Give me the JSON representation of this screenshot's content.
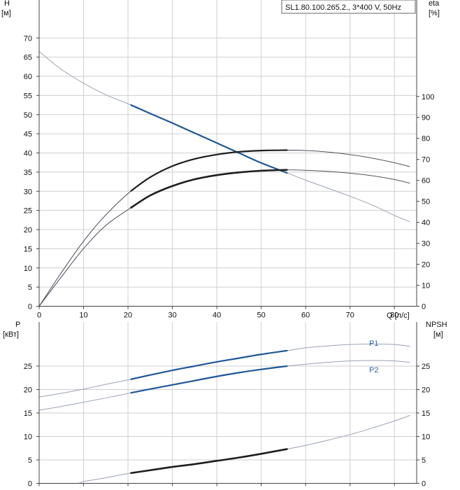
{
  "colors": {
    "grid": "#cfcfcf",
    "axis": "#444444",
    "thin_curve": "#9aa3b5",
    "dark_curve": "#1e1e1e",
    "blue_curve": "#1f5896",
    "legend_blue": "#2e63a8"
  },
  "chart_data": [
    {
      "type": "line",
      "panel": "head",
      "title": "SL1.80.100.265.2., 3*400 V, 50Hz",
      "xlabel": "Q [л/с]",
      "ylabel_left": [
        "H",
        "[м]"
      ],
      "ylabel_right": [
        "eta",
        "[%]"
      ],
      "xlim": [
        0,
        85
      ],
      "ylim_left": [
        0,
        75
      ],
      "ylim_right": [
        0,
        137
      ],
      "xticks": [
        0,
        10,
        20,
        30,
        40,
        50,
        60,
        70,
        80
      ],
      "yticks_left": [
        0,
        5,
        10,
        15,
        20,
        25,
        30,
        35,
        40,
        45,
        50,
        55,
        60,
        65,
        70
      ],
      "yticks_right": [
        0,
        10,
        20,
        30,
        40,
        50,
        60,
        70,
        80,
        90,
        100
      ],
      "grid": true,
      "series": [
        {
          "id": "H",
          "axis": "left",
          "x": [
            0,
            5,
            10,
            15,
            20.7,
            25,
            30,
            35,
            40,
            45,
            50,
            55.8,
            60,
            65,
            70,
            75,
            80,
            83.5
          ],
          "y": [
            66.5,
            61.8,
            58.2,
            55.2,
            52.5,
            50.3,
            47.8,
            45.2,
            42.6,
            40,
            37.4,
            34.8,
            32.9,
            30.8,
            28.7,
            26.4,
            23.7,
            22
          ],
          "operating_range": [
            20.7,
            55.8
          ]
        },
        {
          "id": "eta",
          "axis": "right",
          "x": [
            0,
            5,
            10,
            15,
            20.7,
            25,
            30,
            35,
            40,
            45,
            50,
            55.8,
            60,
            65,
            70,
            75,
            80,
            83.5
          ],
          "y": [
            0,
            16,
            31,
            43.5,
            55,
            61.5,
            66.8,
            70.2,
            72.3,
            73.6,
            74.2,
            74.4,
            74.2,
            73.5,
            72.3,
            70.6,
            68.4,
            66.5
          ],
          "operating_range": [
            20.7,
            55.8
          ]
        },
        {
          "id": "eta2",
          "axis": "right",
          "x": [
            0,
            5,
            10,
            15,
            20.7,
            25,
            30,
            35,
            40,
            45,
            50,
            55.8,
            60,
            65,
            70,
            75,
            80,
            83.5
          ],
          "y": [
            0,
            14,
            27.5,
            38.5,
            47,
            52.8,
            57.3,
            60.5,
            62.5,
            63.8,
            64.6,
            65,
            64.8,
            64.3,
            63.4,
            62.2,
            60.4,
            58.6
          ],
          "operating_range": [
            20.7,
            55.8
          ]
        }
      ]
    },
    {
      "type": "line",
      "panel": "power",
      "ylabel_left": [
        "P",
        "[кВт]"
      ],
      "ylabel_right": [
        "NPSH",
        "[м]"
      ],
      "xlim": [
        0,
        85
      ],
      "ylim_left": [
        0,
        30
      ],
      "ylim_right": [
        0,
        30
      ],
      "yticks_left": [
        0,
        5,
        10,
        15,
        20,
        25
      ],
      "yticks_right": [
        0,
        5,
        10,
        15,
        20,
        25
      ],
      "grid": true,
      "series": [
        {
          "name": "P1",
          "axis": "left",
          "x": [
            0,
            5,
            10,
            15,
            20.7,
            25,
            30,
            35,
            40,
            45,
            50,
            55.8,
            60,
            65,
            70,
            75,
            80,
            83.5
          ],
          "y": [
            18.4,
            19.2,
            20.1,
            21.1,
            22.2,
            23.1,
            24.1,
            25,
            25.9,
            26.7,
            27.5,
            28.3,
            28.9,
            29.3,
            29.6,
            29.7,
            29.6,
            29.2
          ],
          "operating_range": [
            20.7,
            55.8
          ]
        },
        {
          "name": "P2",
          "axis": "left",
          "x": [
            0,
            5,
            10,
            15,
            20.7,
            25,
            30,
            35,
            40,
            45,
            50,
            55.8,
            60,
            65,
            70,
            75,
            80,
            83.5
          ],
          "y": [
            15.6,
            16.4,
            17.3,
            18.2,
            19.3,
            20.1,
            21,
            21.9,
            22.8,
            23.6,
            24.3,
            25,
            25.4,
            25.8,
            26.1,
            26.2,
            26.1,
            25.8
          ],
          "operating_range": [
            20.7,
            55.8
          ]
        },
        {
          "id": "NPSH",
          "axis": "right",
          "x": [
            0,
            8.5,
            10,
            15,
            20.7,
            25,
            30,
            35,
            40,
            45,
            50,
            55.8,
            60,
            65,
            70,
            75,
            80,
            83.5
          ],
          "y": [
            0,
            0,
            0.4,
            1.2,
            2.2,
            2.8,
            3.5,
            4.1,
            4.8,
            5.5,
            6.3,
            7.3,
            8.1,
            9.2,
            10.4,
            11.8,
            13.3,
            14.5
          ],
          "operating_range": [
            20.7,
            55.8
          ]
        }
      ]
    }
  ]
}
